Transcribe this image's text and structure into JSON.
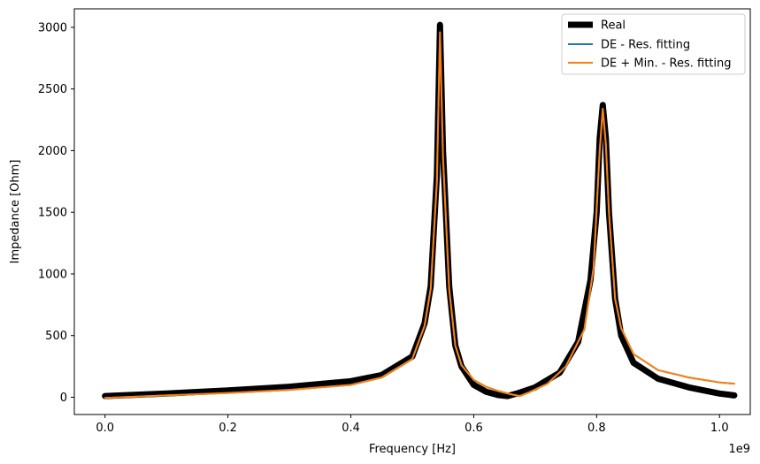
{
  "chart_data": {
    "type": "line",
    "xlabel": "Frequency [Hz]",
    "ylabel": "Impedance [Ohm]",
    "x_offset_label": "1e9",
    "xlim": [
      -0.05,
      1.05
    ],
    "ylim": [
      -140,
      3150
    ],
    "xticks": [
      0.0,
      0.2,
      0.4,
      0.6,
      0.8,
      1.0
    ],
    "xtick_labels": [
      "0.0",
      "0.2",
      "0.4",
      "0.6",
      "0.8",
      "1.0"
    ],
    "yticks": [
      0,
      500,
      1000,
      1500,
      2000,
      2500,
      3000
    ],
    "ytick_labels": [
      "0",
      "500",
      "1000",
      "1500",
      "2000",
      "2500",
      "3000"
    ],
    "legend_position": "top-right",
    "series": [
      {
        "name": "Real",
        "color": "#000000",
        "x": [
          0.0,
          0.1,
          0.2,
          0.3,
          0.4,
          0.45,
          0.5,
          0.52,
          0.53,
          0.54,
          0.545,
          0.55,
          0.56,
          0.57,
          0.58,
          0.6,
          0.62,
          0.64,
          0.655,
          0.67,
          0.7,
          0.74,
          0.77,
          0.79,
          0.8,
          0.805,
          0.81,
          0.815,
          0.82,
          0.83,
          0.84,
          0.86,
          0.9,
          0.95,
          1.0,
          1.024
        ],
        "y": [
          10,
          30,
          55,
          85,
          130,
          180,
          330,
          600,
          900,
          1800,
          3020,
          2000,
          900,
          420,
          250,
          100,
          45,
          18,
          10,
          30,
          80,
          200,
          450,
          950,
          1500,
          2100,
          2370,
          2100,
          1500,
          800,
          500,
          280,
          150,
          80,
          30,
          15
        ]
      },
      {
        "name": "DE - Res. fitting",
        "color": "#1f77b4",
        "x": [
          0.0,
          0.1,
          0.2,
          0.3,
          0.4,
          0.45,
          0.5,
          0.52,
          0.53,
          0.54,
          0.545,
          0.55,
          0.56,
          0.57,
          0.58,
          0.6,
          0.62,
          0.64,
          0.66,
          0.675,
          0.69,
          0.72,
          0.75,
          0.78,
          0.795,
          0.805,
          0.81,
          0.815,
          0.82,
          0.83,
          0.84,
          0.86,
          0.9,
          0.95,
          1.0,
          1.024
        ],
        "y": [
          -5,
          15,
          35,
          60,
          100,
          160,
          310,
          580,
          880,
          1750,
          2960,
          1950,
          880,
          420,
          260,
          140,
          85,
          50,
          25,
          10,
          40,
          110,
          250,
          550,
          1050,
          2000,
          2340,
          2050,
          1500,
          800,
          560,
          350,
          220,
          160,
          120,
          110
        ]
      },
      {
        "name": "DE + Min. - Res. fitting",
        "color": "#ff7f0e",
        "x": [
          0.0,
          0.1,
          0.2,
          0.3,
          0.4,
          0.45,
          0.5,
          0.52,
          0.53,
          0.54,
          0.545,
          0.55,
          0.56,
          0.57,
          0.58,
          0.6,
          0.62,
          0.64,
          0.66,
          0.675,
          0.69,
          0.72,
          0.75,
          0.78,
          0.795,
          0.805,
          0.81,
          0.815,
          0.82,
          0.83,
          0.84,
          0.86,
          0.9,
          0.95,
          1.0,
          1.024
        ],
        "y": [
          -5,
          15,
          35,
          60,
          100,
          160,
          310,
          580,
          880,
          1750,
          2960,
          1950,
          880,
          420,
          260,
          140,
          85,
          50,
          25,
          10,
          40,
          110,
          250,
          550,
          1050,
          2000,
          2340,
          2050,
          1500,
          800,
          560,
          350,
          220,
          160,
          120,
          110
        ]
      }
    ]
  }
}
